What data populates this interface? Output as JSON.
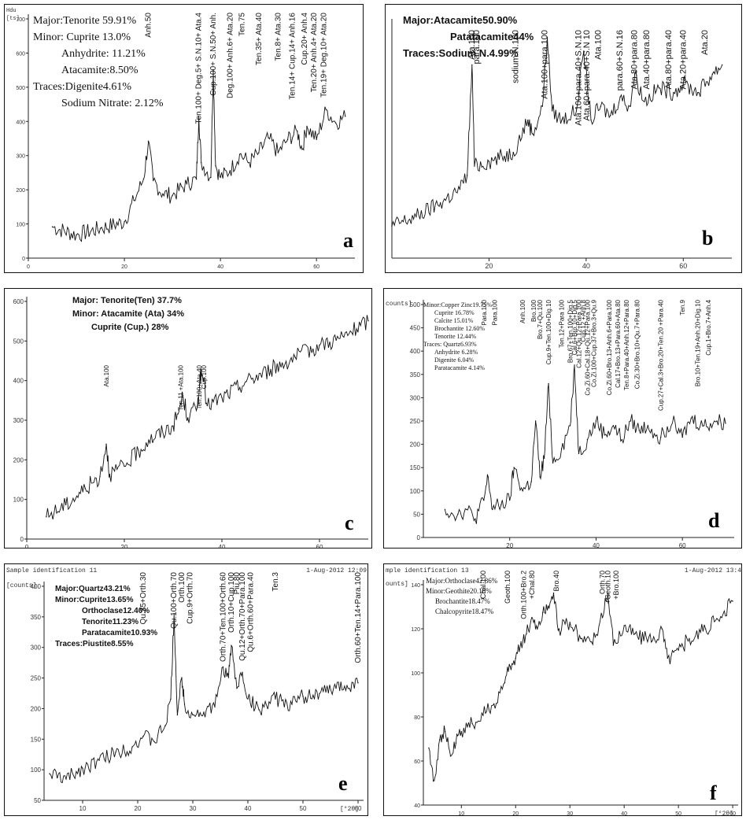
{
  "figure": {
    "panels": [
      {
        "id": "a",
        "label": "a",
        "header_lines": [
          "Hdu",
          "[ts]"
        ],
        "composition_lines": [
          "Major:Tenorite 59.91%",
          "Minor: Cuprite 13.0%",
          "Anhydrite: 11.21%",
          "Atacamite:8.50%",
          "Traces:Digenite4.61%",
          "Sodium Nitrate: 2.12%"
        ],
        "composition_indent": [
          0,
          0,
          1,
          1,
          0,
          1
        ],
        "composition_bold": false,
        "y_ticks": [
          "700",
          "600",
          "500",
          "400",
          "300",
          "200",
          "100",
          "0"
        ],
        "x_ticks": [
          "0",
          "20",
          "40",
          "60"
        ],
        "peak_labels": [
          "Anh.50",
          "Ten.100+ Deg.5+ S.N.10+ Ata.4",
          "Cup.100+ S.N.50+ Anh.",
          "Deg.100+ Anh.6+ Ata.20",
          "Ten.75",
          "Ten.35+ Ata.40",
          "Ten.8+ Ata.30",
          "Ten.14+ Cup.14+ Anh.16",
          "Cup.20+ Anh.4",
          "Ten.20+ Anh.4+ Ata.20",
          "Ten.19+ Deg.10+ Ata.20"
        ],
        "chart_data": {
          "type": "line",
          "x": [
            5,
            10,
            15,
            20,
            22,
            24,
            25,
            26,
            28,
            30,
            33,
            35,
            35.5,
            36,
            38,
            38.5,
            39,
            40,
            42,
            44,
            46,
            48,
            50,
            52,
            54,
            56,
            57,
            58,
            60,
            62,
            64,
            66
          ],
          "values": [
            95,
            70,
            90,
            110,
            175,
            240,
            355,
            235,
            195,
            190,
            225,
            240,
            430,
            290,
            245,
            570,
            280,
            245,
            265,
            315,
            290,
            320,
            365,
            320,
            360,
            385,
            330,
            400,
            360,
            450,
            410,
            430
          ],
          "xlim": [
            0,
            68
          ],
          "ylim": [
            0,
            740
          ]
        }
      },
      {
        "id": "b",
        "label": "b",
        "composition_lines": [
          "Major:Atacamite50.90%",
          "Patatacamite44%",
          "Traces:Sodium N.4.99%"
        ],
        "composition_indent": [
          0,
          1,
          0
        ],
        "composition_bold": true,
        "y_ticks": [],
        "x_ticks": [
          "20",
          "40",
          "60"
        ],
        "peak_labels": [
          "Ata.100",
          "para.100",
          "sodium N.100",
          "Ata.100+para.100",
          "Ata.100+para.40+S.N.10",
          "Ata.60+para.40+S.N 10",
          "Ata.100",
          "para.60+S.N.16",
          "Ata.80+para.80",
          "Ata.40+para.80",
          "Ata.80+para.40",
          "Ata.20+para.40",
          "Ata.20"
        ],
        "chart_data": {
          "type": "line",
          "x": [
            0,
            5,
            10,
            14,
            15.5,
            16.5,
            17,
            20,
            25,
            28,
            29,
            31,
            32,
            33,
            35,
            38,
            39.5,
            41,
            43,
            45,
            47,
            49,
            50,
            52,
            55,
            58,
            60,
            63,
            66,
            68
          ],
          "values": [
            70,
            90,
            120,
            150,
            180,
            420,
            200,
            210,
            230,
            300,
            270,
            330,
            480,
            320,
            300,
            320,
            450,
            300,
            330,
            310,
            350,
            330,
            400,
            340,
            370,
            360,
            380,
            360,
            400,
            420
          ],
          "xlim": [
            0,
            70
          ],
          "ylim": [
            0,
            520
          ]
        }
      },
      {
        "id": "c",
        "label": "c",
        "composition_lines": [
          "Major:  Tenorite(Ten) 37.7%",
          "Minor: Atacamite (Ata) 34%",
          "Cuprite (Cup.) 28%"
        ],
        "composition_indent": [
          0,
          0,
          1
        ],
        "composition_bold": true,
        "y_ticks": [
          "600",
          "500",
          "400",
          "300",
          "200",
          "100",
          "0"
        ],
        "x_ticks": [
          "0",
          "20",
          "40",
          "60"
        ],
        "peak_labels": [
          "Ata.100",
          "Ten.11 +Ata.100",
          "Ten.100+Ata.40",
          "Cup.100"
        ],
        "chart_data": {
          "type": "line",
          "x": [
            4,
            8,
            12,
            15,
            16.3,
            17,
            20,
            25,
            30,
            31,
            32,
            33,
            35,
            35.5,
            36,
            37,
            40,
            45,
            50,
            55,
            60,
            65,
            70
          ],
          "values": [
            55,
            85,
            125,
            155,
            235,
            160,
            180,
            245,
            280,
            310,
            355,
            300,
            330,
            400,
            405,
            330,
            350,
            390,
            420,
            450,
            480,
            500,
            540
          ],
          "xlim": [
            0,
            70
          ],
          "ylim": [
            0,
            600
          ]
        }
      },
      {
        "id": "d",
        "label": "d",
        "y_axis_title": "counts]",
        "composition_lines": [
          "Minor:Copper Zinc19.75%",
          "Cuprite 16.78%",
          "Calcite 15.01%",
          "Brochantite 12.60%",
          "Tenorite 12.44%",
          "Traces: Quartz6.93%",
          "Anhydrite 6.28%",
          "Digenite 6.04%",
          "Paratacamite 4.14%"
        ],
        "composition_indent": [
          0,
          1,
          1,
          1,
          1,
          0,
          1,
          1,
          1
        ],
        "composition_bold": false,
        "y_ticks": [
          "500",
          "450",
          "400",
          "350",
          "300",
          "250",
          "200",
          "150",
          "100",
          "50",
          "0"
        ],
        "x_ticks": [
          "20",
          "40",
          "60"
        ],
        "peak_labels": [
          "Para.100",
          "Para.100",
          "Anh.100",
          "Bro.100",
          "Bro.7+Qu.100",
          "Cup.9+Ten.100+Dig.10",
          "Ten.12+Para 100",
          "Bro.67+Ten.100+Dig.5",
          "Cal.6+Bro.10+Dig.5",
          "Cal.12+Qu.12+Para.100",
          "Cup.12 +Anh.8",
          "Co.Zi.60+Cal.18+Qu.12+Para.100",
          "Co.Zi.100+Cup.37+Bro.3+Qu.9",
          "Co.Zi.60+Bro.13+Anh.6+Para.100",
          "Cal.17+Bro.13+Para.60+Ata.80",
          "Ten.8+Para.40+Anh.12+Para.80",
          "Co.Zi.30+Bro.10+Qu.7+Para.80",
          "Cup.27+Cal.3+Bro.20+Ten.20 +Para.40",
          "Ten.9",
          "Bro.10+Ten.19+Anh.20+Dig.10",
          "Cup.1+Bro.7+Anh.4"
        ],
        "chart_data": {
          "type": "line",
          "x": [
            5,
            8,
            10,
            12,
            14,
            15,
            16,
            18,
            20,
            21,
            23,
            25,
            26,
            27,
            28,
            29,
            30,
            32,
            34,
            35,
            36,
            38,
            40,
            42,
            44,
            46,
            48,
            50,
            52,
            55,
            58,
            60,
            62,
            65,
            68,
            70
          ],
          "values": [
            60,
            50,
            60,
            40,
            80,
            130,
            60,
            70,
            80,
            150,
            100,
            120,
            250,
            130,
            170,
            330,
            160,
            190,
            240,
            370,
            180,
            210,
            250,
            220,
            240,
            210,
            250,
            230,
            240,
            215,
            260,
            215,
            255,
            240,
            250,
            245
          ],
          "xlim": [
            0,
            72
          ],
          "ylim": [
            0,
            510
          ]
        }
      },
      {
        "id": "e",
        "label": "e",
        "header_left": "Sample identification  11",
        "header_right": "1-Aug-2012 12:09",
        "y_axis_title": "[counts]",
        "x_axis_title": "[°2θ]",
        "composition_lines": [
          "Major:Quartz43.21%",
          "Minor:Cuprite13.65%",
          "Orthoclase12.40%",
          "Tenorite11.23%",
          "Paratacamite10.93%",
          "Traces:Piustite8.55%"
        ],
        "composition_indent": [
          0,
          0,
          1,
          1,
          1,
          0
        ],
        "composition_bold": true,
        "y_ticks": [
          "400",
          "350",
          "300",
          "250",
          "200",
          "150",
          "100",
          "50"
        ],
        "x_ticks": [
          "10",
          "20",
          "30",
          "40",
          "50",
          "60"
        ],
        "peak_labels": [
          "Qu.35+Orth.30",
          "Qu.100+Orth.70",
          "Orth.100",
          "Cup.9+Orth.70",
          "Orth.70+Ten.100+Orth.60",
          "Orth.10+Cup.100",
          "Piu.80",
          "Qu.12+Orth.70+Para.100",
          "Qu.6+Orth.60+Para.40",
          "Ten.3",
          "Orth.60+Ten.14+Para.100"
        ],
        "chart_data": {
          "type": "line",
          "x": [
            4,
            7,
            10,
            13,
            16,
            19,
            21,
            23,
            25,
            26,
            26.6,
            27.2,
            28,
            28.5,
            30,
            32,
            34,
            35.5,
            36.5,
            37,
            38,
            39,
            40,
            42,
            45,
            48,
            50,
            53,
            56,
            58,
            60
          ],
          "values": [
            50,
            40,
            60,
            75,
            90,
            100,
            120,
            110,
            140,
            190,
            350,
            160,
            230,
            180,
            160,
            165,
            175,
            250,
            230,
            290,
            210,
            240,
            190,
            170,
            190,
            180,
            195,
            200,
            210,
            215,
            220
          ],
          "xlim": [
            3,
            61
          ],
          "ylim": [
            0,
            410
          ]
        }
      },
      {
        "id": "f",
        "label": "f",
        "header_left": "mple identification  13",
        "header_right": "1-Aug-2012 13:4",
        "y_axis_title": "ounts]",
        "x_axis_title": "[°2θ]",
        "composition_lines": [
          "Major:Orthoclase42.86%",
          "Minor:Geothite20.18%",
          "Brochantite18.47%",
          "Chalcopyrite18.47%"
        ],
        "composition_indent": [
          0,
          0,
          1,
          1
        ],
        "composition_bold": false,
        "y_ticks": [
          "140",
          "120",
          "100",
          "80",
          "60",
          "40"
        ],
        "x_ticks": [
          "10",
          "20",
          "30",
          "40",
          "50",
          "60"
        ],
        "peak_labels": [
          "Chal.100",
          "Geoth.100",
          "Orth.100+Bro.2",
          "+Chal.80",
          "Bro.40",
          "Orth.70",
          "+Geoth.10",
          "+Bro.100"
        ],
        "chart_data": {
          "type": "line",
          "x": [
            4,
            5,
            6,
            7,
            8,
            9,
            10,
            12,
            14,
            16,
            18,
            19,
            20,
            21,
            22,
            23,
            24,
            25,
            26,
            27,
            28,
            30,
            32,
            34,
            36,
            37,
            38,
            40,
            42,
            45,
            47,
            48,
            50,
            52,
            55,
            58,
            60
          ],
          "values": [
            45,
            25,
            50,
            55,
            40,
            48,
            55,
            60,
            65,
            72,
            85,
            95,
            100,
            110,
            115,
            125,
            118,
            128,
            132,
            140,
            118,
            122,
            112,
            110,
            125,
            140,
            108,
            120,
            115,
            110,
            118,
            100,
            105,
            112,
            118,
            125,
            135
          ],
          "xlim": [
            3,
            61
          ],
          "ylim": [
            10,
            148
          ]
        }
      }
    ]
  }
}
